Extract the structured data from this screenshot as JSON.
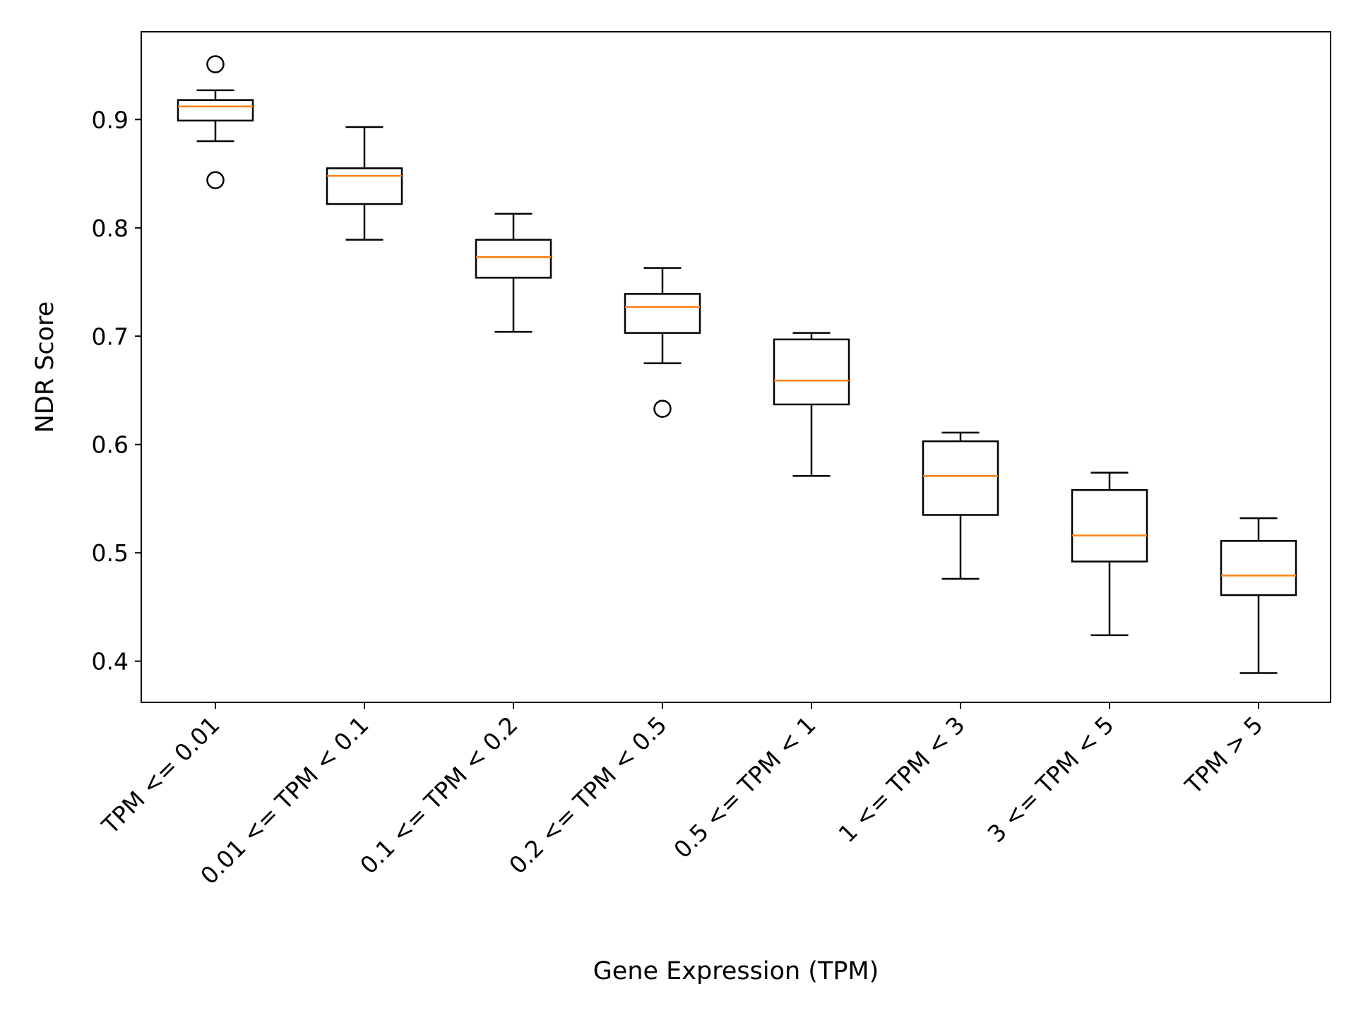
{
  "chart_data": {
    "type": "box",
    "title": "",
    "xlabel": "Gene Expression (TPM)",
    "ylabel": "NDR Score",
    "ylim": [
      0.362,
      0.981
    ],
    "yticks": [
      0.4,
      0.5,
      0.6,
      0.7,
      0.8,
      0.9
    ],
    "ytick_labels": [
      "0.4",
      "0.5",
      "0.6",
      "0.7",
      "0.8",
      "0.9"
    ],
    "grid": false,
    "categories": [
      "TPM <= 0.01",
      "0.01 <= TPM < 0.1",
      "0.1 <= TPM < 0.2",
      "0.2 <= TPM < 0.5",
      "0.5 <= TPM < 1",
      "1 <= TPM < 3",
      "3 <= TPM < 5",
      "TPM > 5"
    ],
    "boxes": [
      {
        "whisker_low": 0.88,
        "q1": 0.899,
        "median": 0.912,
        "q3": 0.918,
        "whisker_high": 0.927,
        "outliers": [
          0.951,
          0.844
        ]
      },
      {
        "whisker_low": 0.789,
        "q1": 0.822,
        "median": 0.848,
        "q3": 0.855,
        "whisker_high": 0.893,
        "outliers": []
      },
      {
        "whisker_low": 0.704,
        "q1": 0.754,
        "median": 0.773,
        "q3": 0.789,
        "whisker_high": 0.813,
        "outliers": []
      },
      {
        "whisker_low": 0.675,
        "q1": 0.703,
        "median": 0.727,
        "q3": 0.739,
        "whisker_high": 0.763,
        "outliers": [
          0.633
        ]
      },
      {
        "whisker_low": 0.571,
        "q1": 0.637,
        "median": 0.659,
        "q3": 0.697,
        "whisker_high": 0.703,
        "outliers": []
      },
      {
        "whisker_low": 0.476,
        "q1": 0.535,
        "median": 0.571,
        "q3": 0.603,
        "whisker_high": 0.611,
        "outliers": []
      },
      {
        "whisker_low": 0.424,
        "q1": 0.492,
        "median": 0.516,
        "q3": 0.558,
        "whisker_high": 0.574,
        "outliers": []
      },
      {
        "whisker_low": 0.389,
        "q1": 0.461,
        "median": 0.479,
        "q3": 0.511,
        "whisker_high": 0.532,
        "outliers": []
      }
    ],
    "colors": {
      "box": "#000000",
      "median": "#ff7f0e",
      "outlier": "#000000",
      "background": "#ffffff"
    }
  }
}
